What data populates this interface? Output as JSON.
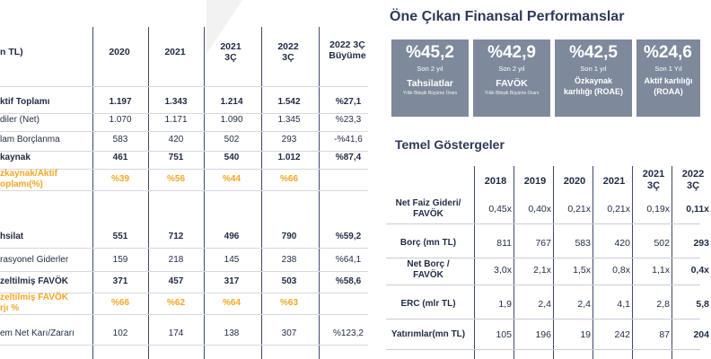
{
  "left_table": {
    "unit_label": "n TL)",
    "headers": [
      "2020",
      "2021",
      "2021\n3Ç",
      "2022\n3Ç",
      "2022 3Ç\nBüyüme"
    ],
    "rows": [
      {
        "label": "ktif Toplamı",
        "values": [
          "1.197",
          "1.343",
          "1.214",
          "1.542",
          "%27,1"
        ],
        "style": "bold"
      },
      {
        "label": "diler (Net)",
        "values": [
          "1.070",
          "1.171",
          "1.090",
          "1.345",
          "%23,3"
        ],
        "style": "normal"
      },
      {
        "label": "lam Borçlanma",
        "values": [
          "583",
          "420",
          "502",
          "293",
          "-%41,6"
        ],
        "style": "normal"
      },
      {
        "label": "kaynak",
        "values": [
          "461",
          "751",
          "540",
          "1.012",
          "%87,4"
        ],
        "style": "bold"
      },
      {
        "label": "zkaynak/Aktif\noplamı(%)",
        "values": [
          "%39",
          "%56",
          "%44",
          "%66",
          ""
        ],
        "style": "orange"
      },
      {
        "label": "hsilat",
        "values": [
          "551",
          "712",
          "496",
          "790",
          "%59,2"
        ],
        "style": "bold"
      },
      {
        "label": "rasyonel Giderler",
        "values": [
          "159",
          "218",
          "145",
          "238",
          "%64,1"
        ],
        "style": "normal"
      },
      {
        "label": "zeltilmiş FAVÖK",
        "values": [
          "371",
          "457",
          "317",
          "503",
          "%58,6"
        ],
        "style": "bold"
      },
      {
        "label": "zeltilmiş FAVÖK\nrjı %",
        "values": [
          "%66",
          "%62",
          "%64",
          "%63",
          ""
        ],
        "style": "orange"
      },
      {
        "label": "em Net Karı/Zararı",
        "values": [
          "102",
          "174",
          "138",
          "307",
          "%123,2"
        ],
        "style": "normal"
      }
    ]
  },
  "highlights": {
    "title": "Öne Çıkan Finansal Performanslar",
    "cards": [
      {
        "value": "%45,2",
        "period": "Son 2 yıl",
        "name": "Tahsilatlar",
        "note": "Yıllık Bileşik Büyüme Oranı"
      },
      {
        "value": "%42,9",
        "period": "Son 2 yıl",
        "name": "FAVÖK",
        "note": "Yıllık Bileşik Büyüme Oranı"
      },
      {
        "value": "%42,5",
        "period": "Son 1 yıl",
        "name": "Özkaynak\nkarlılığı (ROAE)",
        "note": ""
      },
      {
        "value": "%24,6",
        "period": "Son 1 Yıl",
        "name": "Aktif karlılığı\n(ROAA)",
        "note": ""
      }
    ]
  },
  "kpis": {
    "title": "Temel Göstergeler",
    "headers": [
      "2018",
      "2019",
      "2020",
      "2021",
      "2021\n3Ç",
      "2022\n3Ç"
    ],
    "rows": [
      {
        "label": "Net Faiz Gideri/\nFAVÖK",
        "values": [
          "0,45x",
          "0,40x",
          "0,21x",
          "0,21x",
          "0,19x",
          "0,11x"
        ]
      },
      {
        "label": "Borç (mn TL)",
        "values": [
          "811",
          "767",
          "583",
          "420",
          "502",
          "293"
        ]
      },
      {
        "label": "Net Borç /\nFAVÖK",
        "values": [
          "3,0x",
          "2,1x",
          "1,5x",
          "0,8x",
          "1,1x",
          "0,4x"
        ]
      },
      {
        "label": "ERC (mlr TL)",
        "values": [
          "1,9",
          "2,4",
          "2,4",
          "4,1",
          "2,8",
          "5,8"
        ]
      },
      {
        "label": "Yatırımlar(mn TL)",
        "values": [
          "105",
          "196",
          "19",
          "242",
          "87",
          "204"
        ]
      }
    ]
  }
}
